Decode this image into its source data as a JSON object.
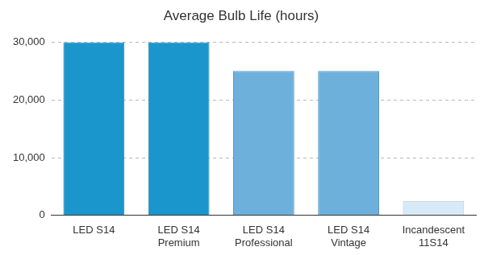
{
  "chart_data": {
    "type": "bar",
    "title": "Average Bulb Life (hours)",
    "categories": [
      "LED S14",
      "LED S14\nPremium",
      "LED S14\nProfessional",
      "LED S14\nVintage",
      "Incandescent\n11S14"
    ],
    "values": [
      30000,
      30000,
      25000,
      25000,
      2500
    ],
    "colors": [
      "#1b96cd",
      "#1b96cd",
      "#6eb0dc",
      "#6eb0dc",
      "#d8eaf7"
    ],
    "ylim": [
      0,
      30000
    ],
    "yticks": [
      0,
      {
        "value": 10000,
        "label": "10,000"
      },
      {
        "value": 20000,
        "label": "20,000"
      },
      {
        "value": 30000,
        "label": "30,000"
      }
    ],
    "grid": true
  }
}
